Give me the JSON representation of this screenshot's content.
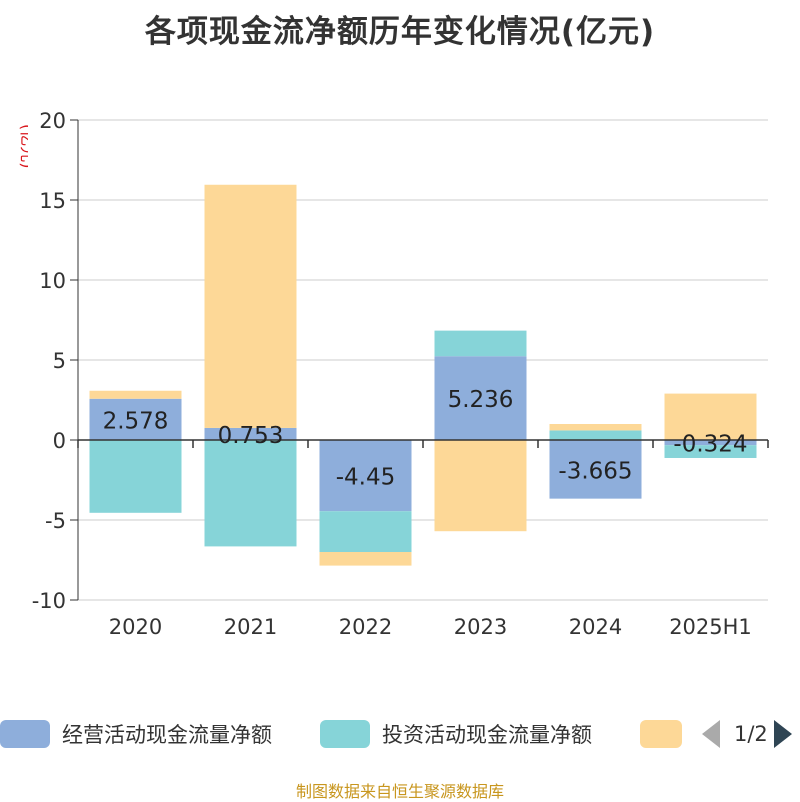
{
  "title": "各项现金流净额历年变化情况(亿元)",
  "chart_data": {
    "type": "bar",
    "stacked": true,
    "unit_label": "(亿元)",
    "categories": [
      "2020",
      "2021",
      "2022",
      "2023",
      "2024",
      "2025H1"
    ],
    "ylim": [
      -10,
      20
    ],
    "yticks": [
      -10,
      -5,
      0,
      5,
      10,
      15,
      20
    ],
    "grid": true,
    "series": [
      {
        "name": "经营活动现金流量净额",
        "color": "#8eaedb",
        "values": [
          2.578,
          0.753,
          -4.45,
          5.236,
          -3.665,
          -0.324
        ],
        "labels": [
          "2.578",
          "0.753",
          "-4.45",
          "5.236",
          "-3.665",
          "-0.324"
        ]
      },
      {
        "name": "投资活动现金流量净额",
        "color": "#86d4d8",
        "values": [
          -4.55,
          -6.65,
          -2.55,
          1.6,
          0.6,
          -0.8
        ]
      },
      {
        "name": "",
        "color": "#fdd897",
        "values": [
          0.5,
          15.2,
          -0.85,
          -5.7,
          0.4,
          2.9
        ]
      }
    ]
  },
  "legend": {
    "page_text": "1/2"
  },
  "source": "制图数据来自恒生聚源数据库"
}
